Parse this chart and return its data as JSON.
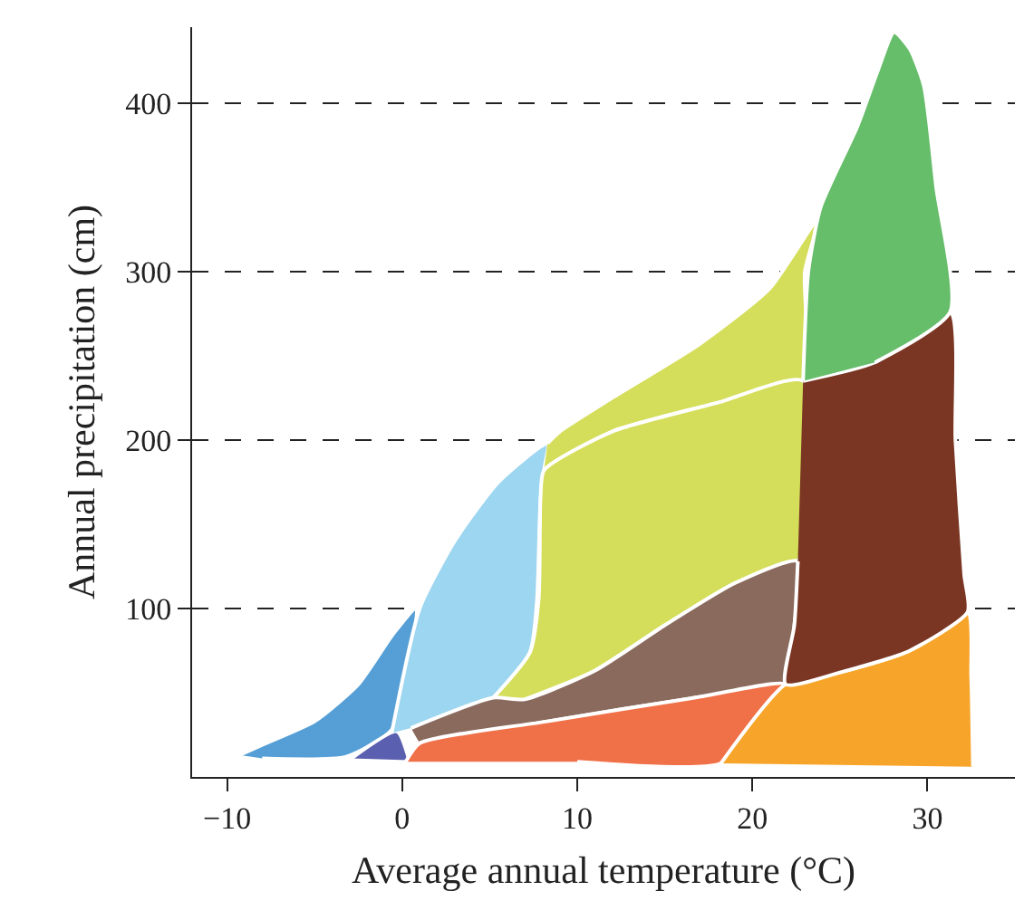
{
  "chart_data": {
    "type": "area",
    "xlabel": "Average annual temperature (°C)",
    "ylabel": "Annual precipitation (cm)",
    "xlim": [
      -12,
      35
    ],
    "ylim": [
      0,
      445
    ],
    "xticks": [
      {
        "value": -10,
        "label": "−10"
      },
      0,
      10,
      20,
      30
    ],
    "yticks": [
      100,
      200,
      300,
      400
    ],
    "grid": "y",
    "line_style": "solid",
    "marker": "none",
    "series": [
      {
        "color": "#559fd6",
        "x": [
          -9.3,
          -8,
          -5,
          -2.5,
          -0.5,
          0.8,
          0.3,
          -0.6,
          -3.2,
          -8
        ],
        "values": [
          13,
          19,
          33,
          55,
          85,
          100,
          60,
          28,
          12,
          11
        ]
      },
      {
        "color": "#5b5fb0",
        "x": [
          -2.9,
          -0.3,
          0.4
        ],
        "values": [
          11,
          27,
          10
        ]
      },
      {
        "color": "#9dd6f0",
        "x": [
          -0.6,
          1,
          3,
          5.5,
          8.3,
          8.1,
          7.9,
          7.7,
          7.3,
          5.2,
          0.5
        ],
        "values": [
          26,
          100,
          140,
          175,
          198,
          182,
          165,
          105,
          74,
          47,
          29
        ]
      },
      {
        "color": "#d4de5a",
        "x": [
          8.3,
          9,
          12,
          17,
          21,
          23.8,
          23,
          22.9,
          18,
          12,
          8.1
        ],
        "values": [
          198,
          205,
          225,
          257,
          290,
          332,
          300,
          235,
          222,
          205,
          182
        ]
      },
      {
        "color": "#d4de5a",
        "x": [
          5.2,
          7.3,
          7.8,
          7.9,
          8.1,
          12,
          18,
          22.9,
          22.6,
          19,
          15,
          11,
          7
        ],
        "values": [
          47,
          74,
          106,
          165,
          182,
          205,
          222,
          235,
          128,
          115,
          90,
          63,
          46
        ]
      },
      {
        "color": "#8b6a5e",
        "x": [
          0.5,
          5.2,
          7,
          11,
          15,
          19,
          22.6,
          22.4,
          21.9,
          16.7,
          8.3,
          1
        ],
        "values": [
          29,
          47,
          46,
          63,
          90,
          115,
          128,
          90,
          55,
          47,
          33,
          20
        ]
      },
      {
        "color": "#f07048",
        "x": [
          0.2,
          1,
          8.3,
          16.7,
          21.9,
          20,
          18.2,
          10
        ],
        "values": [
          9,
          20,
          33,
          47,
          55,
          30,
          8,
          9
        ]
      },
      {
        "color": "#f7a52a",
        "x": [
          18.2,
          21.9,
          25,
          29,
          32.3,
          32.5,
          32.6
        ],
        "values": [
          8,
          55,
          62,
          75,
          98,
          60,
          6
        ]
      },
      {
        "color": "#7a3623",
        "x": [
          22.9,
          27,
          31.3,
          31.6,
          32.1,
          32.3,
          29,
          25,
          21.9,
          22.4,
          22.6
        ],
        "values": [
          235,
          246,
          276,
          200,
          120,
          98,
          75,
          62,
          55,
          90,
          128
        ]
      },
      {
        "color": "#66bd6a",
        "x": [
          22.9,
          23.2,
          23.9,
          26,
          27.2,
          28.1,
          29,
          29.8,
          30.5,
          31.3,
          27
        ],
        "values": [
          235,
          300,
          338,
          386,
          420,
          442,
          432,
          410,
          350,
          276,
          246
        ]
      }
    ]
  }
}
